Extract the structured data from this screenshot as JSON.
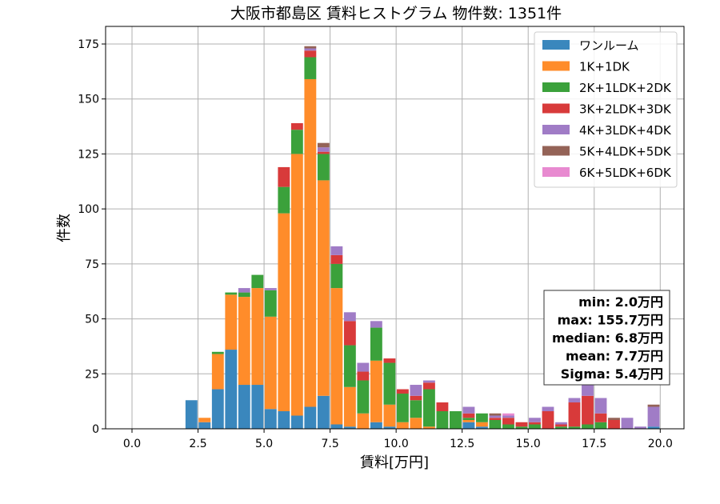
{
  "chart_data": {
    "type": "bar",
    "stacked": true,
    "title": "大阪市都島区 賃料ヒストグラム 物件数: 1351件",
    "xlabel": "賃料[万円]",
    "ylabel": "件数",
    "xlim": [
      -1.0,
      20.9
    ],
    "ylim": [
      0,
      183
    ],
    "xticks": [
      0.0,
      2.5,
      5.0,
      7.5,
      10.0,
      12.5,
      15.0,
      17.5,
      20.0
    ],
    "xtick_labels": [
      "0.0",
      "2.5",
      "5.0",
      "7.5",
      "10.0",
      "12.5",
      "15.0",
      "17.5",
      "20.0"
    ],
    "yticks": [
      0,
      25,
      50,
      75,
      100,
      125,
      150,
      175
    ],
    "ytick_labels": [
      "0",
      "25",
      "50",
      "75",
      "100",
      "125",
      "150",
      "175"
    ],
    "grid": true,
    "legend_position": "top-right",
    "bin_width": 0.5,
    "bin_starts": [
      2.0,
      2.5,
      3.0,
      3.5,
      4.0,
      4.5,
      5.0,
      5.5,
      6.0,
      6.5,
      7.0,
      7.5,
      8.0,
      8.5,
      9.0,
      9.5,
      10.0,
      10.5,
      11.0,
      11.5,
      12.0,
      12.5,
      13.0,
      13.5,
      14.0,
      14.5,
      15.0,
      15.5,
      16.0,
      16.5,
      17.0,
      17.5,
      18.0,
      18.5,
      19.0,
      19.5
    ],
    "series": [
      {
        "name": "ワンルーム",
        "color": "#3a87bd",
        "values": [
          13,
          3,
          18,
          36,
          20,
          20,
          9,
          8,
          6,
          10,
          15,
          2,
          1,
          0,
          3,
          1,
          0,
          0,
          0,
          0,
          0,
          3,
          1,
          0,
          0,
          0,
          0,
          0,
          0,
          0,
          0,
          0,
          0,
          0,
          0,
          1
        ]
      },
      {
        "name": "1K+1DK",
        "color": "#ff8c2a",
        "values": [
          0,
          2,
          16,
          25,
          40,
          44,
          42,
          90,
          119,
          149,
          98,
          62,
          18,
          7,
          28,
          10,
          3,
          5,
          1,
          0,
          0,
          1,
          2,
          0,
          0,
          0,
          0,
          0,
          0,
          0,
          0,
          0,
          0,
          0,
          0,
          0
        ]
      },
      {
        "name": "2K+1LDK+2DK",
        "color": "#3ba13b",
        "values": [
          0,
          0,
          1,
          1,
          2,
          6,
          12,
          12,
          11,
          10,
          12,
          11,
          19,
          15,
          15,
          19,
          13,
          8,
          17,
          8,
          8,
          1,
          4,
          4,
          2,
          1,
          2,
          0,
          1,
          1,
          2,
          3,
          0,
          0,
          0,
          0
        ]
      },
      {
        "name": "3K+2LDK+3DK",
        "color": "#d83a3a",
        "values": [
          0,
          0,
          0,
          0,
          0,
          0,
          0,
          9,
          3,
          3,
          1,
          4,
          11,
          4,
          0,
          2,
          2,
          2,
          3,
          4,
          0,
          2,
          0,
          1,
          3,
          2,
          1,
          8,
          1,
          11,
          13,
          4,
          4,
          0,
          0,
          0
        ]
      },
      {
        "name": "4K+3LDK+4DK",
        "color": "#a07cc6",
        "values": [
          0,
          0,
          0,
          0,
          2,
          0,
          1,
          0,
          0,
          1,
          2,
          4,
          4,
          4,
          3,
          0,
          0,
          5,
          1,
          0,
          0,
          3,
          0,
          1,
          1,
          0,
          2,
          2,
          1,
          2,
          5,
          7,
          0,
          5,
          1,
          9
        ]
      },
      {
        "name": "5K+4LDK+5DK",
        "color": "#946357",
        "values": [
          0,
          0,
          0,
          0,
          0,
          0,
          0,
          0,
          0,
          1,
          2,
          0,
          0,
          0,
          0,
          0,
          0,
          0,
          0,
          0,
          0,
          0,
          0,
          1,
          0,
          0,
          0,
          0,
          0,
          0,
          0,
          0,
          1,
          0,
          0,
          1
        ]
      },
      {
        "name": "6K+5LDK+6DK",
        "color": "#e88ad0",
        "values": [
          0,
          0,
          0,
          0,
          0,
          0,
          0,
          0,
          0,
          0,
          0,
          0,
          0,
          0,
          0,
          0,
          0,
          0,
          0,
          0,
          0,
          0,
          0,
          0,
          1,
          0,
          0,
          0,
          0,
          0,
          0,
          0,
          0,
          0,
          0,
          0
        ]
      }
    ],
    "stats": [
      "min: 2.0万円",
      "max: 155.7万円",
      "median: 6.8万円",
      "mean: 7.7万円",
      "Sigma: 5.4万円"
    ]
  }
}
